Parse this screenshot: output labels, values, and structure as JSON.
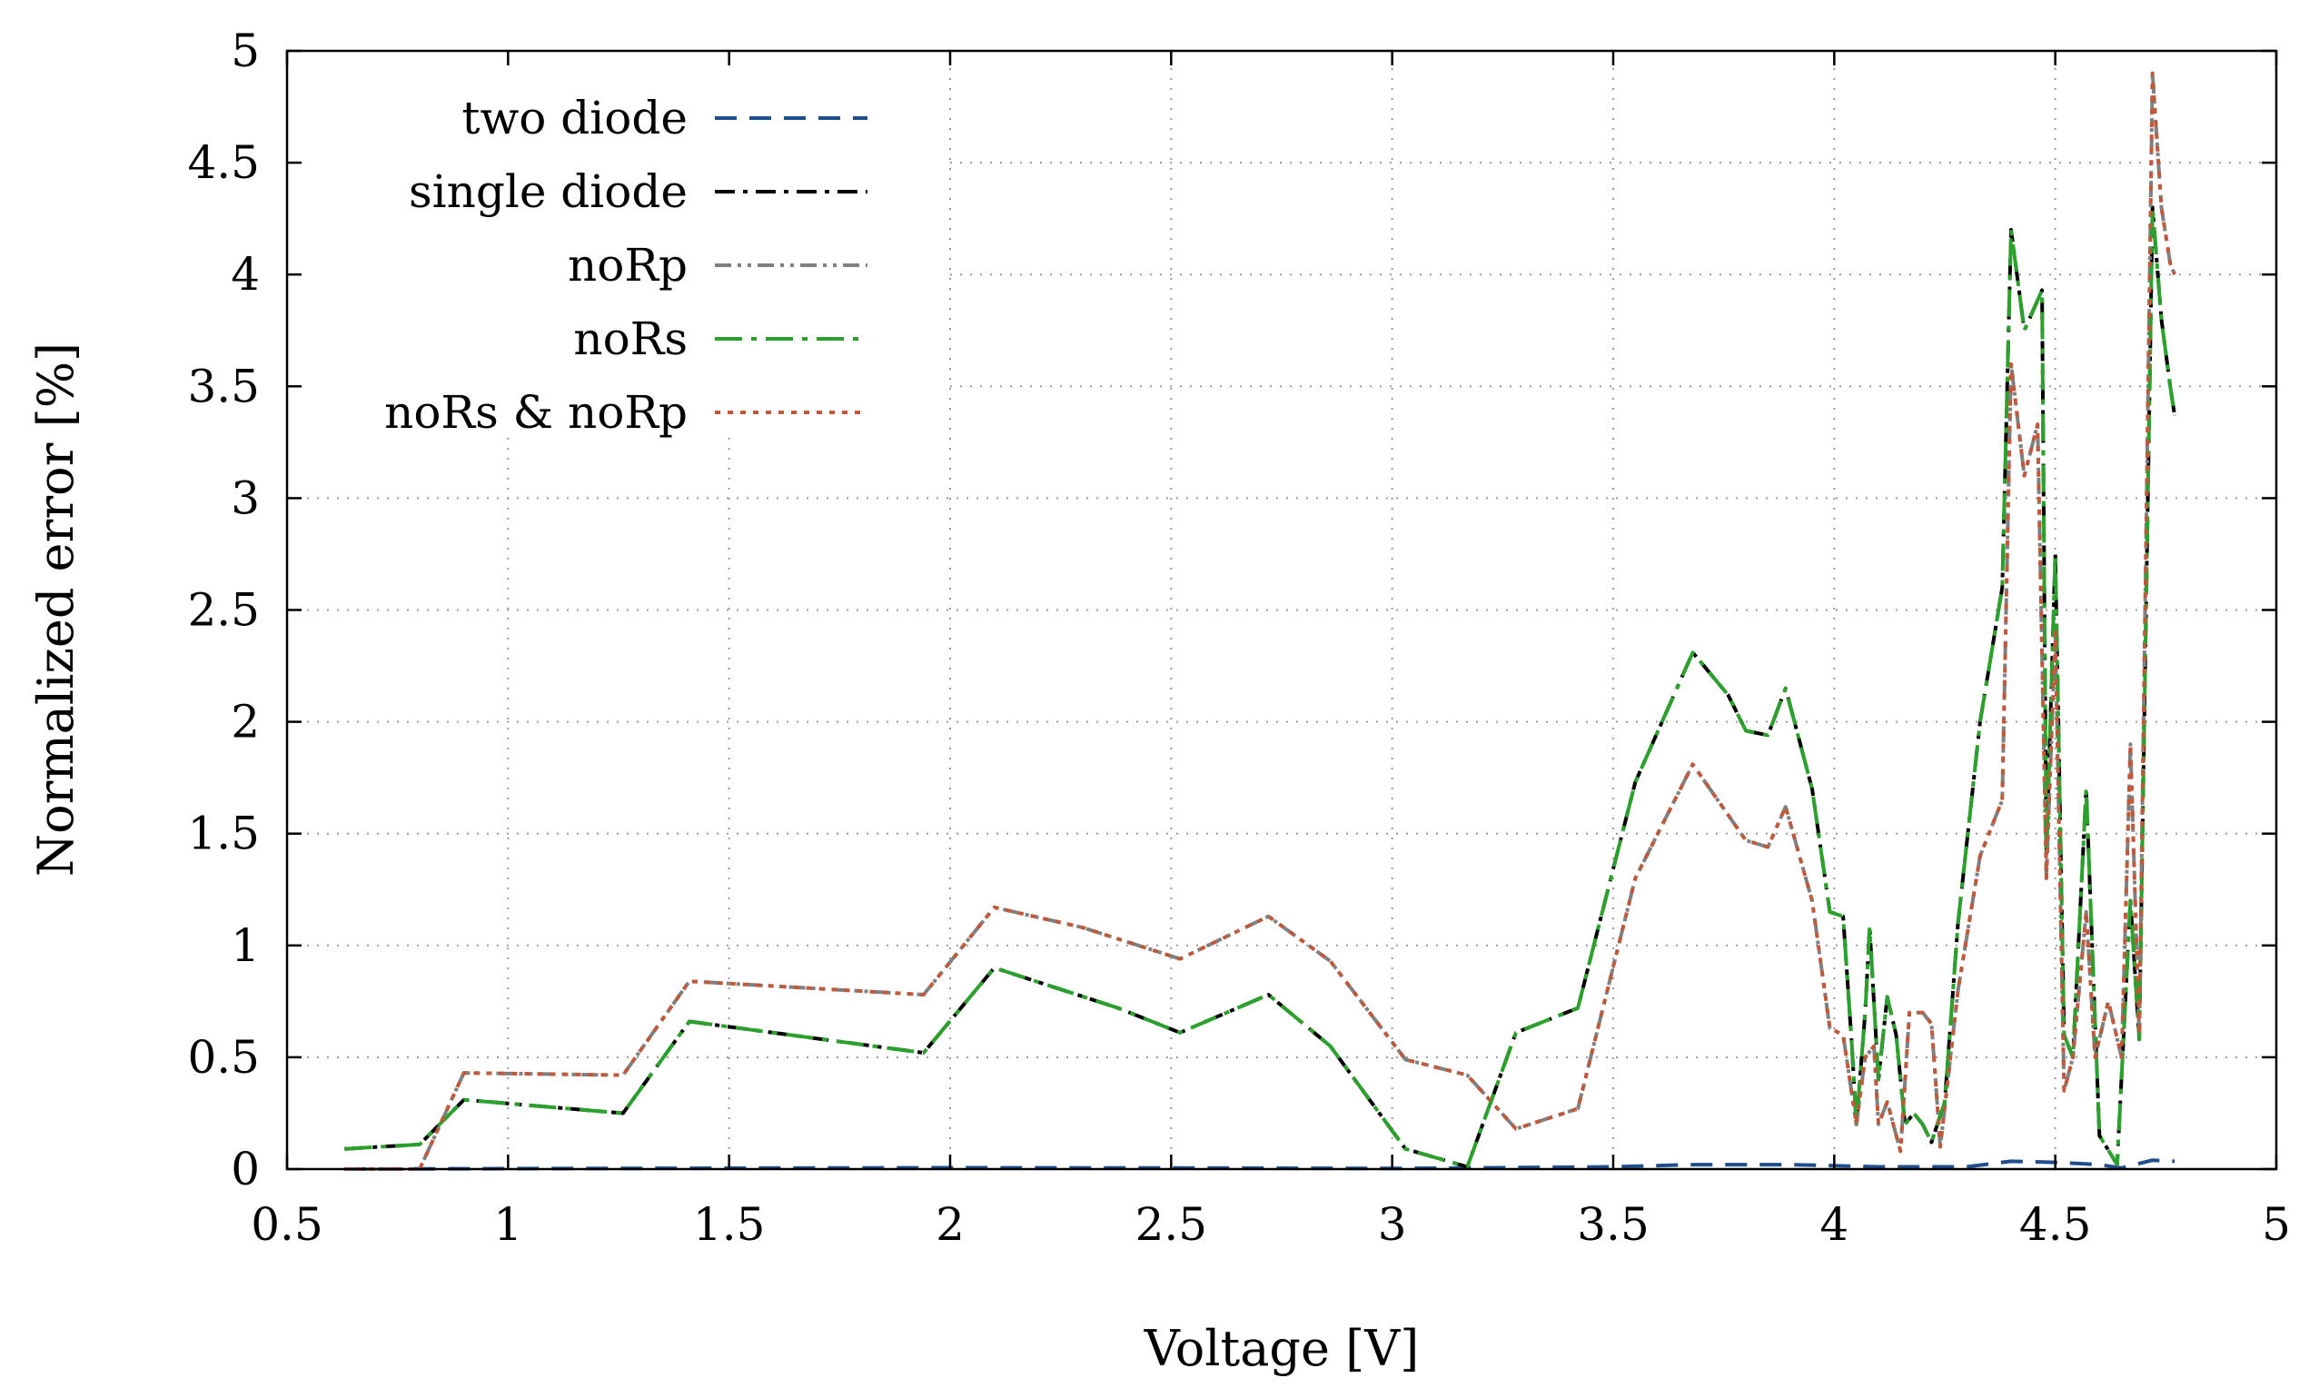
{
  "chart_data": {
    "type": "line",
    "title": "",
    "xlabel": "Voltage [V]",
    "ylabel": "Normalized error [%]",
    "xlim": [
      0.5,
      5
    ],
    "ylim": [
      0,
      5
    ],
    "xticks": [
      0.5,
      1,
      1.5,
      2,
      2.5,
      3,
      3.5,
      4,
      4.5,
      5
    ],
    "xtick_labels": [
      "0.5",
      "1",
      "1.5",
      "2",
      "2.5",
      "3",
      "3.5",
      "4",
      "4.5",
      "5"
    ],
    "yticks": [
      0,
      0.5,
      1,
      1.5,
      2,
      2.5,
      3,
      3.5,
      4,
      4.5,
      5
    ],
    "ytick_labels": [
      "0",
      "0.5",
      "1",
      "1.5",
      "2",
      "2.5",
      "3",
      "3.5",
      "4",
      "4.5",
      "5"
    ],
    "grid": true,
    "legend_position": "top-left",
    "series": [
      {
        "name": "two diode",
        "color": "#1f4e8c",
        "dash": "dashed",
        "points": [
          [
            0.63,
            0
          ],
          [
            1.0,
            0.002
          ],
          [
            1.5,
            0.004
          ],
          [
            2.0,
            0.006
          ],
          [
            2.5,
            0.005
          ],
          [
            3.0,
            0.003
          ],
          [
            3.15,
            0.005
          ],
          [
            3.5,
            0.01
          ],
          [
            3.68,
            0.02
          ],
          [
            3.9,
            0.02
          ],
          [
            4.1,
            0.01
          ],
          [
            4.3,
            0.01
          ],
          [
            4.4,
            0.035
          ],
          [
            4.5,
            0.03
          ],
          [
            4.6,
            0.02
          ],
          [
            4.65,
            0.005
          ],
          [
            4.72,
            0.04
          ],
          [
            4.77,
            0.035
          ]
        ]
      },
      {
        "name": "single diode",
        "color": "#000000",
        "dash": "dash-dot",
        "points": [
          [
            0.63,
            0.09
          ],
          [
            0.8,
            0.11
          ],
          [
            0.9,
            0.31
          ],
          [
            1.26,
            0.25
          ],
          [
            1.41,
            0.66
          ],
          [
            1.94,
            0.52
          ],
          [
            2.1,
            0.9
          ],
          [
            2.38,
            0.72
          ],
          [
            2.52,
            0.61
          ],
          [
            2.72,
            0.78
          ],
          [
            2.86,
            0.55
          ],
          [
            3.03,
            0.09
          ],
          [
            3.17,
            0.01
          ],
          [
            3.28,
            0.61
          ],
          [
            3.42,
            0.72
          ],
          [
            3.55,
            1.73
          ],
          [
            3.68,
            2.31
          ],
          [
            3.76,
            2.12
          ],
          [
            3.8,
            1.96
          ],
          [
            3.85,
            1.94
          ],
          [
            3.89,
            2.15
          ],
          [
            3.95,
            1.7
          ],
          [
            3.99,
            1.15
          ],
          [
            4.02,
            1.13
          ],
          [
            4.04,
            0.55
          ],
          [
            4.05,
            0.2
          ],
          [
            4.07,
            0.7
          ],
          [
            4.08,
            1.08
          ],
          [
            4.1,
            0.4
          ],
          [
            4.12,
            0.77
          ],
          [
            4.14,
            0.6
          ],
          [
            4.16,
            0.2
          ],
          [
            4.18,
            0.25
          ],
          [
            4.2,
            0.2
          ],
          [
            4.22,
            0.12
          ],
          [
            4.25,
            0.3
          ],
          [
            4.28,
            1.1
          ],
          [
            4.33,
            2.0
          ],
          [
            4.38,
            2.6
          ],
          [
            4.4,
            4.2
          ],
          [
            4.43,
            3.75
          ],
          [
            4.47,
            3.93
          ],
          [
            4.48,
            1.4
          ],
          [
            4.5,
            2.75
          ],
          [
            4.52,
            0.6
          ],
          [
            4.54,
            0.5
          ],
          [
            4.57,
            1.7
          ],
          [
            4.6,
            0.15
          ],
          [
            4.64,
            0.02
          ],
          [
            4.67,
            1.2
          ],
          [
            4.69,
            0.58
          ],
          [
            4.72,
            4.3
          ],
          [
            4.74,
            3.8
          ],
          [
            4.76,
            3.5
          ],
          [
            4.77,
            3.37
          ]
        ]
      },
      {
        "name": "noRp",
        "color": "#808080",
        "dash": "dash-dot-dot",
        "points": [
          [
            0.63,
            0
          ],
          [
            0.8,
            0
          ],
          [
            0.9,
            0.43
          ],
          [
            1.26,
            0.42
          ],
          [
            1.41,
            0.84
          ],
          [
            1.94,
            0.78
          ],
          [
            2.1,
            1.17
          ],
          [
            2.3,
            1.08
          ],
          [
            2.52,
            0.94
          ],
          [
            2.72,
            1.13
          ],
          [
            2.86,
            0.93
          ],
          [
            3.03,
            0.49
          ],
          [
            3.17,
            0.42
          ],
          [
            3.28,
            0.18
          ],
          [
            3.42,
            0.27
          ],
          [
            3.55,
            1.3
          ],
          [
            3.68,
            1.81
          ],
          [
            3.8,
            1.47
          ],
          [
            3.85,
            1.44
          ],
          [
            3.89,
            1.62
          ],
          [
            3.95,
            1.2
          ],
          [
            3.99,
            0.63
          ],
          [
            4.02,
            0.6
          ],
          [
            4.05,
            0.2
          ],
          [
            4.07,
            0.5
          ],
          [
            4.09,
            0.55
          ],
          [
            4.1,
            0.2
          ],
          [
            4.12,
            0.3
          ],
          [
            4.15,
            0.08
          ],
          [
            4.17,
            0.7
          ],
          [
            4.2,
            0.7
          ],
          [
            4.22,
            0.65
          ],
          [
            4.24,
            0.1
          ],
          [
            4.28,
            0.8
          ],
          [
            4.33,
            1.4
          ],
          [
            4.38,
            1.65
          ],
          [
            4.4,
            3.6
          ],
          [
            4.43,
            3.1
          ],
          [
            4.46,
            3.33
          ],
          [
            4.48,
            1.3
          ],
          [
            4.5,
            2.4
          ],
          [
            4.52,
            0.35
          ],
          [
            4.54,
            0.5
          ],
          [
            4.57,
            1.15
          ],
          [
            4.59,
            0.5
          ],
          [
            4.62,
            0.75
          ],
          [
            4.65,
            0.5
          ],
          [
            4.67,
            1.9
          ],
          [
            4.69,
            0.6
          ],
          [
            4.72,
            4.9
          ],
          [
            4.74,
            4.3
          ],
          [
            4.76,
            4.05
          ],
          [
            4.77,
            4.0
          ]
        ]
      },
      {
        "name": "noRs",
        "color": "#2ca02c",
        "dash": "dash-dot-long",
        "points": [
          [
            0.63,
            0.09
          ],
          [
            0.8,
            0.11
          ],
          [
            0.9,
            0.31
          ],
          [
            1.26,
            0.25
          ],
          [
            1.41,
            0.66
          ],
          [
            1.94,
            0.52
          ],
          [
            2.1,
            0.9
          ],
          [
            2.38,
            0.72
          ],
          [
            2.52,
            0.61
          ],
          [
            2.72,
            0.78
          ],
          [
            2.86,
            0.55
          ],
          [
            3.03,
            0.09
          ],
          [
            3.17,
            0.01
          ],
          [
            3.28,
            0.61
          ],
          [
            3.42,
            0.72
          ],
          [
            3.55,
            1.73
          ],
          [
            3.68,
            2.31
          ],
          [
            3.76,
            2.12
          ],
          [
            3.8,
            1.96
          ],
          [
            3.85,
            1.94
          ],
          [
            3.89,
            2.15
          ],
          [
            3.95,
            1.7
          ],
          [
            3.99,
            1.15
          ],
          [
            4.02,
            1.13
          ],
          [
            4.04,
            0.55
          ],
          [
            4.05,
            0.2
          ],
          [
            4.07,
            0.7
          ],
          [
            4.08,
            1.08
          ],
          [
            4.1,
            0.4
          ],
          [
            4.12,
            0.77
          ],
          [
            4.14,
            0.6
          ],
          [
            4.16,
            0.2
          ],
          [
            4.18,
            0.25
          ],
          [
            4.2,
            0.2
          ],
          [
            4.22,
            0.12
          ],
          [
            4.25,
            0.3
          ],
          [
            4.28,
            1.1
          ],
          [
            4.33,
            2.0
          ],
          [
            4.38,
            2.6
          ],
          [
            4.4,
            4.2
          ],
          [
            4.43,
            3.75
          ],
          [
            4.47,
            3.93
          ],
          [
            4.48,
            1.4
          ],
          [
            4.5,
            2.75
          ],
          [
            4.52,
            0.6
          ],
          [
            4.54,
            0.5
          ],
          [
            4.57,
            1.7
          ],
          [
            4.6,
            0.15
          ],
          [
            4.64,
            0.02
          ],
          [
            4.67,
            1.2
          ],
          [
            4.69,
            0.58
          ],
          [
            4.72,
            4.3
          ],
          [
            4.74,
            3.8
          ],
          [
            4.76,
            3.5
          ],
          [
            4.77,
            3.37
          ]
        ]
      },
      {
        "name": "noRs & noRp",
        "color": "#c0583a",
        "dash": "dotted",
        "points": [
          [
            0.63,
            0
          ],
          [
            0.8,
            0
          ],
          [
            0.9,
            0.43
          ],
          [
            1.26,
            0.42
          ],
          [
            1.41,
            0.84
          ],
          [
            1.94,
            0.78
          ],
          [
            2.1,
            1.17
          ],
          [
            2.3,
            1.08
          ],
          [
            2.52,
            0.94
          ],
          [
            2.72,
            1.13
          ],
          [
            2.86,
            0.93
          ],
          [
            3.03,
            0.49
          ],
          [
            3.17,
            0.42
          ],
          [
            3.28,
            0.18
          ],
          [
            3.42,
            0.27
          ],
          [
            3.55,
            1.3
          ],
          [
            3.68,
            1.81
          ],
          [
            3.8,
            1.47
          ],
          [
            3.85,
            1.44
          ],
          [
            3.89,
            1.62
          ],
          [
            3.95,
            1.2
          ],
          [
            3.99,
            0.63
          ],
          [
            4.02,
            0.6
          ],
          [
            4.05,
            0.2
          ],
          [
            4.07,
            0.5
          ],
          [
            4.09,
            0.55
          ],
          [
            4.1,
            0.2
          ],
          [
            4.12,
            0.3
          ],
          [
            4.15,
            0.08
          ],
          [
            4.17,
            0.7
          ],
          [
            4.2,
            0.7
          ],
          [
            4.22,
            0.65
          ],
          [
            4.24,
            0.1
          ],
          [
            4.28,
            0.8
          ],
          [
            4.33,
            1.4
          ],
          [
            4.38,
            1.65
          ],
          [
            4.4,
            3.6
          ],
          [
            4.43,
            3.1
          ],
          [
            4.46,
            3.33
          ],
          [
            4.48,
            1.3
          ],
          [
            4.5,
            2.4
          ],
          [
            4.52,
            0.35
          ],
          [
            4.54,
            0.5
          ],
          [
            4.57,
            1.15
          ],
          [
            4.59,
            0.5
          ],
          [
            4.62,
            0.75
          ],
          [
            4.65,
            0.5
          ],
          [
            4.67,
            1.9
          ],
          [
            4.69,
            0.6
          ],
          [
            4.72,
            4.9
          ],
          [
            4.74,
            4.3
          ],
          [
            4.76,
            4.05
          ],
          [
            4.77,
            4.0
          ]
        ]
      }
    ]
  }
}
